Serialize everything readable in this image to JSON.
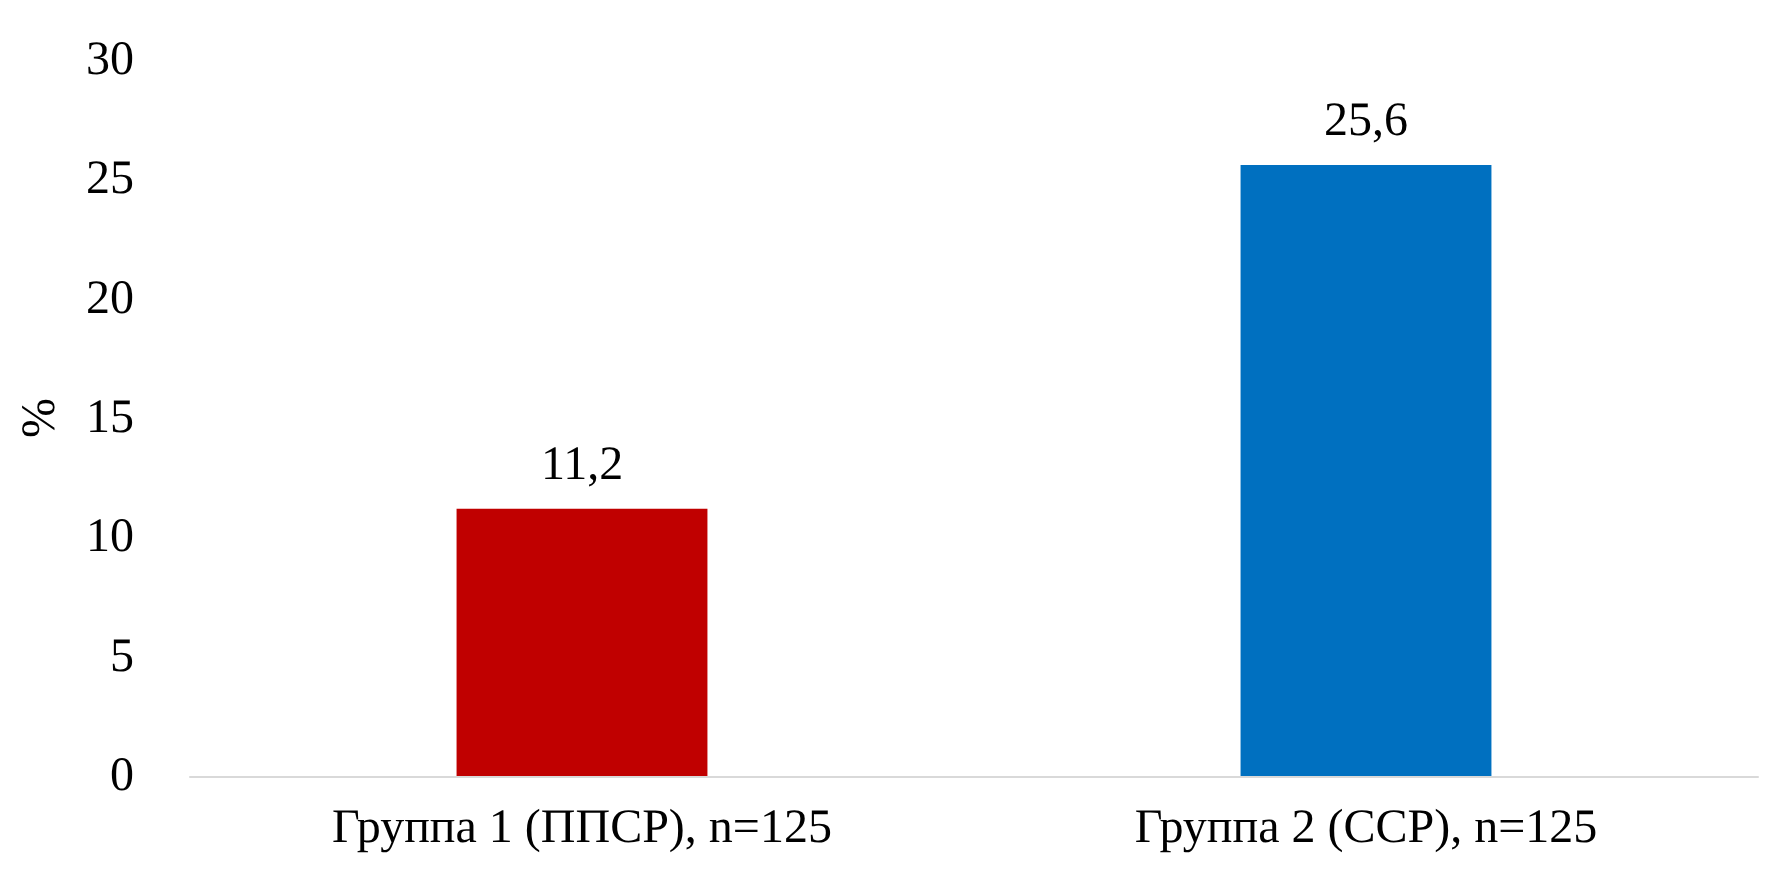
{
  "chart_data": {
    "type": "bar",
    "ylabel": "%",
    "categories": [
      "Группа 1 (ППСР), n=125",
      "Группа 2 (ССР), n=125"
    ],
    "values": [
      11.2,
      25.6
    ],
    "colors": [
      "#c00000",
      "#0070c0"
    ],
    "value_labels": [
      "11,2",
      "25,6"
    ],
    "ylim": [
      0,
      30
    ],
    "yticks": [
      0,
      5,
      10,
      15,
      20,
      25,
      30
    ]
  }
}
